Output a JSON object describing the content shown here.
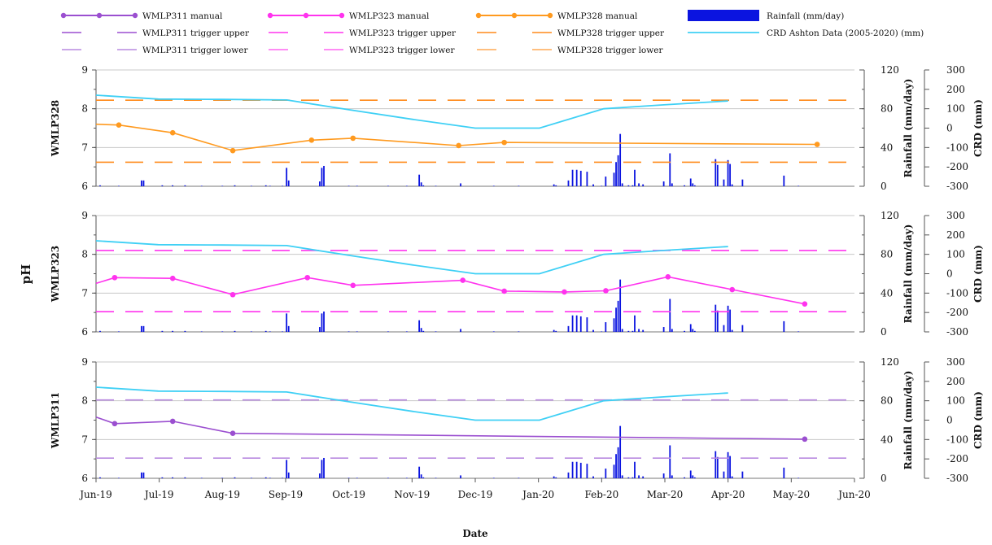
{
  "chart_data": {
    "type": "line",
    "ylabel": "pH",
    "xlabel": "Date",
    "x_ticks": [
      "Jun-19",
      "Jul-19",
      "Aug-19",
      "Sep-19",
      "Oct-19",
      "Nov-19",
      "Dec-19",
      "Jan-20",
      "Feb-20",
      "Mar-20",
      "Apr-20",
      "May-20",
      "Jun-20"
    ],
    "x_range": [
      "2019-06-01",
      "2020-06-01"
    ],
    "ph_range": [
      6,
      9
    ],
    "ph_ticks": [
      "6",
      "7",
      "8",
      "9"
    ],
    "rain_range": [
      0,
      120
    ],
    "rain_ticks": [
      "0",
      "40",
      "80",
      "120"
    ],
    "rain_label": "Rainfall (mm/day)",
    "crd_range": [
      -300,
      300
    ],
    "crd_ticks": [
      "-300",
      "-200",
      "-100",
      "0",
      "100",
      "200",
      "300"
    ],
    "crd_label": "CRD (mm)",
    "grid": "horizontal",
    "legend_position": "top",
    "legend": [
      {
        "label": "WMLP311 manual",
        "kind": "line-marker",
        "color": "#9b4fd0"
      },
      {
        "label": "WMLP323 manual",
        "kind": "line-marker",
        "color": "#ff33ee"
      },
      {
        "label": "WMLP328 manual",
        "kind": "line-marker",
        "color": "#ff9a1f"
      },
      {
        "label": "Rainfall (mm/day)",
        "kind": "bar",
        "color": "#0b14e0"
      },
      {
        "label": "WMLP311 trigger upper",
        "kind": "dash",
        "color": "#9b4fd0"
      },
      {
        "label": "WMLP323 trigger upper",
        "kind": "dash",
        "color": "#ff33ee"
      },
      {
        "label": "WMLP328 trigger upper",
        "kind": "dash",
        "color": "#ff8a1a"
      },
      {
        "label": "CRD Ashton Data (2005-2020) (mm)",
        "kind": "line",
        "color": "#3fd0f5"
      },
      {
        "label": "WMLP311 trigger lower",
        "kind": "dash",
        "color": "#b98ae0"
      },
      {
        "label": "WMLP323 trigger lower",
        "kind": "dash",
        "color": "#ff66f2"
      },
      {
        "label": "WMLP328 trigger lower",
        "kind": "dash",
        "color": "#ffaa55"
      }
    ],
    "crd_series": {
      "name": "CRD Ashton Data (2005-2020) (mm)",
      "color": "#3fd0f5",
      "points": [
        [
          "2019-06-01",
          170
        ],
        [
          "2019-07-01",
          150
        ],
        [
          "2019-08-01",
          148
        ],
        [
          "2019-09-01",
          145
        ],
        [
          "2019-10-01",
          95
        ],
        [
          "2019-11-01",
          45
        ],
        [
          "2019-12-01",
          0
        ],
        [
          "2020-01-01",
          0
        ],
        [
          "2020-02-01",
          100
        ],
        [
          "2020-03-01",
          120
        ],
        [
          "2020-04-01",
          140
        ]
      ]
    },
    "rainfall": [
      [
        "2019-06-03",
        1
      ],
      [
        "2019-06-12",
        0.5
      ],
      [
        "2019-06-23",
        6
      ],
      [
        "2019-06-24",
        6
      ],
      [
        "2019-07-03",
        1
      ],
      [
        "2019-07-08",
        1
      ],
      [
        "2019-07-14",
        1
      ],
      [
        "2019-07-22",
        0.5
      ],
      [
        "2019-08-01",
        0.5
      ],
      [
        "2019-08-07",
        1
      ],
      [
        "2019-08-15",
        0.5
      ],
      [
        "2019-08-22",
        1
      ],
      [
        "2019-08-24",
        0.5
      ],
      [
        "2019-08-30",
        0.5
      ],
      [
        "2019-09-01",
        19
      ],
      [
        "2019-09-02",
        6
      ],
      [
        "2019-09-17",
        5
      ],
      [
        "2019-09-18",
        19
      ],
      [
        "2019-09-19",
        21
      ],
      [
        "2019-10-01",
        0.5
      ],
      [
        "2019-10-05",
        0.5
      ],
      [
        "2019-10-20",
        0.5
      ],
      [
        "2019-10-29",
        0.5
      ],
      [
        "2019-11-04",
        12
      ],
      [
        "2019-11-05",
        4
      ],
      [
        "2019-11-06",
        1
      ],
      [
        "2019-11-12",
        0.5
      ],
      [
        "2019-11-24",
        3
      ],
      [
        "2019-12-10",
        0.5
      ],
      [
        "2019-12-22",
        0.5
      ],
      [
        "2020-01-08",
        2
      ],
      [
        "2020-01-09",
        1
      ],
      [
        "2020-01-15",
        6
      ],
      [
        "2020-01-17",
        17
      ],
      [
        "2020-01-19",
        17
      ],
      [
        "2020-01-21",
        16
      ],
      [
        "2020-01-24",
        15
      ],
      [
        "2020-01-27",
        2
      ],
      [
        "2020-01-31",
        0.5
      ],
      [
        "2020-02-02",
        10
      ],
      [
        "2020-02-06",
        14
      ],
      [
        "2020-02-07",
        25
      ],
      [
        "2020-02-08",
        32
      ],
      [
        "2020-02-09",
        54
      ],
      [
        "2020-02-10",
        3
      ],
      [
        "2020-02-13",
        1
      ],
      [
        "2020-02-15",
        1
      ],
      [
        "2020-02-16",
        17
      ],
      [
        "2020-02-18",
        3
      ],
      [
        "2020-02-20",
        2
      ],
      [
        "2020-03-01",
        5
      ],
      [
        "2020-03-04",
        34
      ],
      [
        "2020-03-05",
        3
      ],
      [
        "2020-03-11",
        1
      ],
      [
        "2020-03-14",
        8
      ],
      [
        "2020-03-15",
        3
      ],
      [
        "2020-03-16",
        1
      ],
      [
        "2020-03-26",
        28
      ],
      [
        "2020-03-27",
        22
      ],
      [
        "2020-03-30",
        7
      ],
      [
        "2020-04-01",
        27
      ],
      [
        "2020-04-02",
        23
      ],
      [
        "2020-04-03",
        2
      ],
      [
        "2020-04-08",
        7
      ],
      [
        "2020-04-28",
        11
      ],
      [
        "2020-05-05",
        0.5
      ]
    ],
    "panels": [
      {
        "name": "WMLP328",
        "color": "#ff9a1f",
        "trigger_upper": 8.22,
        "trigger_lower": 6.62,
        "trigger_color": "#ff8a1a",
        "points": [
          [
            "2019-06-01",
            7.6
          ],
          [
            "2019-06-12",
            7.58
          ],
          [
            "2019-07-08",
            7.38
          ],
          [
            "2019-08-06",
            6.92
          ],
          [
            "2019-09-13",
            7.19
          ],
          [
            "2019-10-03",
            7.24
          ],
          [
            "2019-11-23",
            7.05
          ],
          [
            "2019-12-15",
            7.13
          ],
          [
            "2020-05-14",
            7.08
          ]
        ]
      },
      {
        "name": "WMLP323",
        "color": "#ff33ee",
        "trigger_upper": 8.1,
        "trigger_lower": 6.52,
        "trigger_color": "#ff33ee",
        "points": [
          [
            "2019-06-01",
            7.25
          ],
          [
            "2019-06-10",
            7.4
          ],
          [
            "2019-07-08",
            7.38
          ],
          [
            "2019-08-06",
            6.96
          ],
          [
            "2019-09-11",
            7.4
          ],
          [
            "2019-10-03",
            7.2
          ],
          [
            "2019-11-25",
            7.33
          ],
          [
            "2019-12-15",
            7.05
          ],
          [
            "2020-01-13",
            7.03
          ],
          [
            "2020-02-02",
            7.06
          ],
          [
            "2020-03-03",
            7.42
          ],
          [
            "2020-04-03",
            7.09
          ],
          [
            "2020-05-08",
            6.72
          ]
        ]
      },
      {
        "name": "WMLP311",
        "color": "#9b4fd0",
        "trigger_upper": 8.02,
        "trigger_lower": 6.52,
        "trigger_color": "#b98ae0",
        "points": [
          [
            "2019-06-01",
            7.58
          ],
          [
            "2019-06-10",
            7.41
          ],
          [
            "2019-07-08",
            7.47
          ],
          [
            "2019-08-06",
            7.16
          ],
          [
            "2020-05-08",
            7.01
          ]
        ]
      }
    ]
  }
}
